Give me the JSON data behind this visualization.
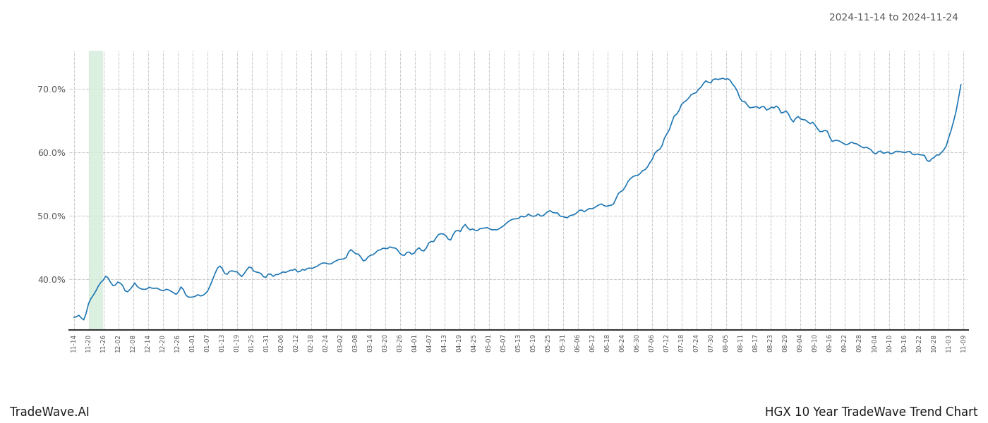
{
  "title_date_range": "2024-11-14 to 2024-11-24",
  "bottom_left": "TradeWave.AI",
  "bottom_right": "HGX 10 Year TradeWave Trend Chart",
  "line_color": "#1f77b4",
  "line_width": 1.2,
  "highlight_start_label": "11-20",
  "highlight_end_label": "11-26",
  "highlight_color": "#d4edda",
  "highlight_alpha": 0.8,
  "background_color": "#ffffff",
  "grid_color": "#cccccc",
  "grid_style": "--",
  "ylim": [
    0.32,
    0.76
  ],
  "yticks": [
    0.4,
    0.5,
    0.6,
    0.7
  ],
  "tick_labels": [
    "11-14",
    "11-20",
    "11-26",
    "12-02",
    "12-08",
    "12-14",
    "12-20",
    "12-26",
    "01-01",
    "01-07",
    "01-13",
    "01-19",
    "01-25",
    "01-31",
    "02-06",
    "02-12",
    "02-18",
    "02-24",
    "03-02",
    "03-08",
    "03-14",
    "03-20",
    "03-26",
    "04-01",
    "04-07",
    "04-13",
    "04-19",
    "04-25",
    "05-01",
    "05-07",
    "05-13",
    "05-19",
    "05-25",
    "05-31",
    "06-06",
    "06-12",
    "06-18",
    "06-24",
    "06-30",
    "07-06",
    "07-12",
    "07-18",
    "07-24",
    "07-30",
    "08-05",
    "08-11",
    "08-17",
    "08-23",
    "08-29",
    "09-04",
    "09-10",
    "09-16",
    "09-22",
    "09-28",
    "10-04",
    "10-10",
    "10-16",
    "10-22",
    "10-28",
    "11-03",
    "11-09"
  ]
}
